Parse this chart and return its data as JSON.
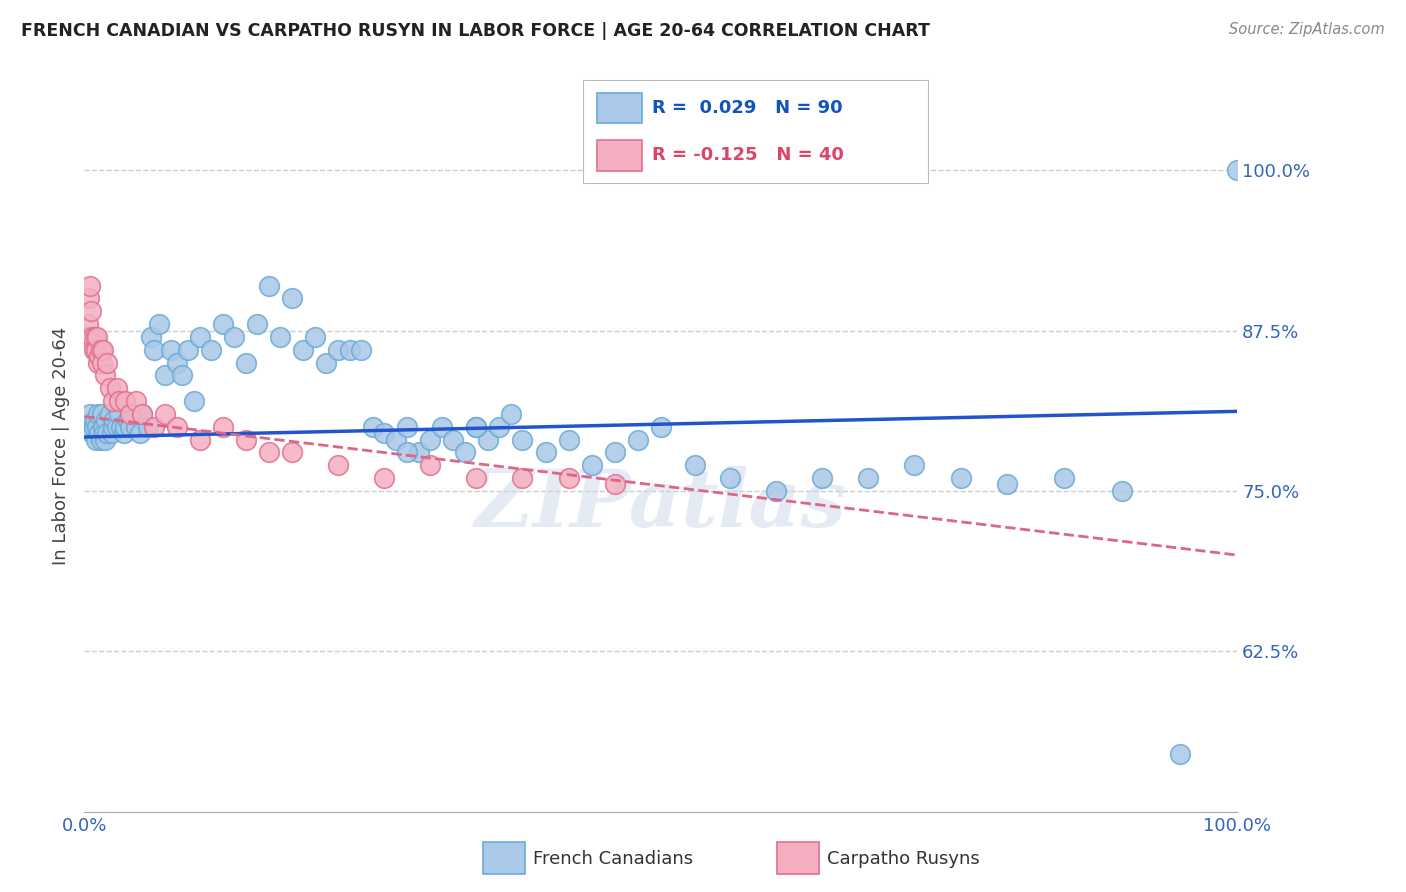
{
  "title": "FRENCH CANADIAN VS CARPATHO RUSYN IN LABOR FORCE | AGE 20-64 CORRELATION CHART",
  "source": "Source: ZipAtlas.com",
  "ylabel": "In Labor Force | Age 20-64",
  "xlim": [
    0,
    1.0
  ],
  "ylim": [
    0.5,
    1.07
  ],
  "yticks": [
    0.625,
    0.75,
    0.875,
    1.0
  ],
  "ytick_labels": [
    "62.5%",
    "75.0%",
    "87.5%",
    "100.0%"
  ],
  "xtick_labels": [
    "0.0%",
    "100.0%"
  ],
  "fc_color": "#aac8e8",
  "fc_edge": "#6aaad4",
  "fc_trend": "#2255cc",
  "cr_color": "#f4b0c0",
  "cr_edge": "#e07090",
  "cr_trend": "#dd6688",
  "watermark": "ZIPatlas",
  "bg": "#ffffff",
  "grid_color": "#cccccc",
  "tick_color": "#3366bb",
  "french_x": [
    0.003,
    0.005,
    0.007,
    0.008,
    0.009,
    0.01,
    0.011,
    0.012,
    0.013,
    0.014,
    0.015,
    0.016,
    0.017,
    0.018,
    0.019,
    0.02,
    0.022,
    0.024,
    0.025,
    0.026,
    0.028,
    0.03,
    0.032,
    0.034,
    0.035,
    0.038,
    0.04,
    0.042,
    0.045,
    0.048,
    0.05,
    0.055,
    0.058,
    0.06,
    0.065,
    0.07,
    0.075,
    0.08,
    0.085,
    0.09,
    0.095,
    0.1,
    0.11,
    0.12,
    0.13,
    0.14,
    0.15,
    0.16,
    0.17,
    0.18,
    0.19,
    0.2,
    0.21,
    0.22,
    0.23,
    0.24,
    0.25,
    0.26,
    0.27,
    0.28,
    0.29,
    0.3,
    0.31,
    0.32,
    0.33,
    0.34,
    0.35,
    0.36,
    0.37,
    0.38,
    0.4,
    0.42,
    0.44,
    0.46,
    0.48,
    0.5,
    0.53,
    0.56,
    0.6,
    0.64,
    0.68,
    0.72,
    0.76,
    0.8,
    0.85,
    0.9,
    0.95,
    1.0,
    0.28,
    0.34
  ],
  "french_y": [
    0.8,
    0.81,
    0.795,
    0.8,
    0.805,
    0.79,
    0.8,
    0.81,
    0.795,
    0.79,
    0.81,
    0.8,
    0.795,
    0.79,
    0.805,
    0.795,
    0.81,
    0.795,
    0.8,
    0.805,
    0.8,
    0.81,
    0.8,
    0.795,
    0.8,
    0.805,
    0.8,
    0.81,
    0.8,
    0.795,
    0.81,
    0.8,
    0.87,
    0.86,
    0.88,
    0.84,
    0.86,
    0.85,
    0.84,
    0.86,
    0.82,
    0.87,
    0.86,
    0.88,
    0.87,
    0.85,
    0.88,
    0.91,
    0.87,
    0.9,
    0.86,
    0.87,
    0.85,
    0.86,
    0.86,
    0.86,
    0.8,
    0.795,
    0.79,
    0.8,
    0.78,
    0.79,
    0.8,
    0.79,
    0.78,
    0.8,
    0.79,
    0.8,
    0.81,
    0.79,
    0.78,
    0.79,
    0.77,
    0.78,
    0.79,
    0.8,
    0.77,
    0.76,
    0.75,
    0.76,
    0.76,
    0.77,
    0.76,
    0.755,
    0.76,
    0.75,
    0.545,
    1.0,
    0.78,
    0.8
  ],
  "rusyn_x": [
    0.002,
    0.003,
    0.004,
    0.005,
    0.006,
    0.007,
    0.008,
    0.009,
    0.01,
    0.011,
    0.012,
    0.013,
    0.014,
    0.015,
    0.016,
    0.018,
    0.02,
    0.022,
    0.025,
    0.028,
    0.03,
    0.035,
    0.04,
    0.045,
    0.05,
    0.06,
    0.07,
    0.08,
    0.1,
    0.12,
    0.14,
    0.16,
    0.18,
    0.22,
    0.26,
    0.3,
    0.34,
    0.38,
    0.42,
    0.46
  ],
  "rusyn_y": [
    0.87,
    0.88,
    0.9,
    0.91,
    0.89,
    0.87,
    0.86,
    0.87,
    0.86,
    0.87,
    0.85,
    0.855,
    0.86,
    0.85,
    0.86,
    0.84,
    0.85,
    0.83,
    0.82,
    0.83,
    0.82,
    0.82,
    0.81,
    0.82,
    0.81,
    0.8,
    0.81,
    0.8,
    0.79,
    0.8,
    0.79,
    0.78,
    0.78,
    0.77,
    0.76,
    0.77,
    0.76,
    0.76,
    0.76,
    0.755
  ],
  "fc_trend_start_x": 0.0,
  "fc_trend_start_y": 0.792,
  "fc_trend_end_x": 1.0,
  "fc_trend_end_y": 0.812,
  "cr_trend_start_x": 0.0,
  "cr_trend_start_y": 0.808,
  "cr_trend_end_x": 1.0,
  "cr_trend_end_y": 0.7
}
